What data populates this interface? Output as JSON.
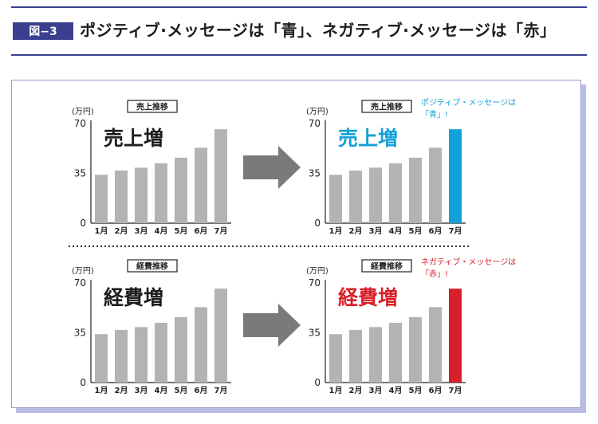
{
  "header": {
    "figure_label": "図−3",
    "title": "ポジティブ·メッセージは「青」、ネガティブ·メッセージは「赤」"
  },
  "colors": {
    "bar_gray": "#b3b3b3",
    "blue": "#12a0d8",
    "red": "#d8202a",
    "arrow": "#7a7a7a"
  },
  "chart_data": [
    {
      "type": "bar",
      "box_label": "売上推移",
      "big_label": "売上増",
      "unit": "(万円)",
      "categories": [
        "1月",
        "2月",
        "3月",
        "4月",
        "5月",
        "6月",
        "7月"
      ],
      "values": [
        34,
        37,
        39,
        42,
        46,
        53,
        66
      ],
      "yticks": [
        0,
        35,
        70
      ],
      "ylim": [
        0,
        70
      ],
      "highlight_last": false,
      "label_color": "#1c1c1c"
    },
    {
      "type": "bar",
      "box_label": "売上推移",
      "big_label": "売上増",
      "unit": "(万円)",
      "categories": [
        "1月",
        "2月",
        "3月",
        "4月",
        "5月",
        "6月",
        "7月"
      ],
      "values": [
        34,
        37,
        39,
        42,
        46,
        53,
        66
      ],
      "yticks": [
        0,
        35,
        70
      ],
      "ylim": [
        0,
        70
      ],
      "highlight_last": true,
      "highlight_color": "#12a0d8",
      "label_color": "#12a0d8",
      "note_lines": [
        "ポジティブ・メッセージは",
        "「青」!"
      ],
      "note_color": "#12a0d8"
    },
    {
      "type": "bar",
      "box_label": "経費推移",
      "big_label": "経費増",
      "unit": "(万円)",
      "categories": [
        "1月",
        "2月",
        "3月",
        "4月",
        "5月",
        "6月",
        "7月"
      ],
      "values": [
        34,
        37,
        39,
        42,
        46,
        53,
        66
      ],
      "yticks": [
        0,
        35,
        70
      ],
      "ylim": [
        0,
        70
      ],
      "highlight_last": false,
      "label_color": "#1c1c1c"
    },
    {
      "type": "bar",
      "box_label": "経費推移",
      "big_label": "経費増",
      "unit": "(万円)",
      "categories": [
        "1月",
        "2月",
        "3月",
        "4月",
        "5月",
        "6月",
        "7月"
      ],
      "values": [
        34,
        37,
        39,
        42,
        46,
        53,
        66
      ],
      "yticks": [
        0,
        35,
        70
      ],
      "ylim": [
        0,
        70
      ],
      "highlight_last": true,
      "highlight_color": "#d8202a",
      "label_color": "#d8202a",
      "note_lines": [
        "ネガティブ・メッセージは",
        "「赤」!"
      ],
      "note_color": "#d8202a"
    }
  ]
}
